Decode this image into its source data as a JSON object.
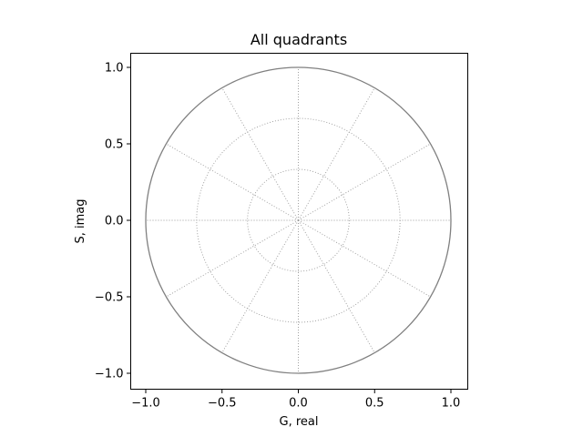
{
  "chart_data": {
    "type": "polar-grid",
    "title": "All quadrants",
    "xlabel": "G, real",
    "ylabel": "S, imag",
    "xlim": [
      -1.1,
      1.1
    ],
    "ylim": [
      -1.1,
      1.1
    ],
    "xticks": [
      -1.0,
      -0.5,
      0.0,
      0.5,
      1.0
    ],
    "yticks": [
      -1.0,
      -0.5,
      0.0,
      0.5,
      1.0
    ],
    "xtick_labels": [
      "−1.0",
      "−0.5",
      "0.0",
      "0.5",
      "1.0"
    ],
    "ytick_labels": [
      "−1.0",
      "−0.5",
      "0.0",
      "0.5",
      "1.0"
    ],
    "unit_circle": {
      "radius": 1.0,
      "color": "#808080"
    },
    "grid": {
      "style": "dotted",
      "color": "#999999",
      "circle_radii": [
        0.3333,
        0.6667
      ],
      "spoke_angles_deg": [
        0,
        30,
        60,
        90,
        120,
        150,
        180,
        210,
        240,
        270,
        300,
        330
      ]
    }
  }
}
